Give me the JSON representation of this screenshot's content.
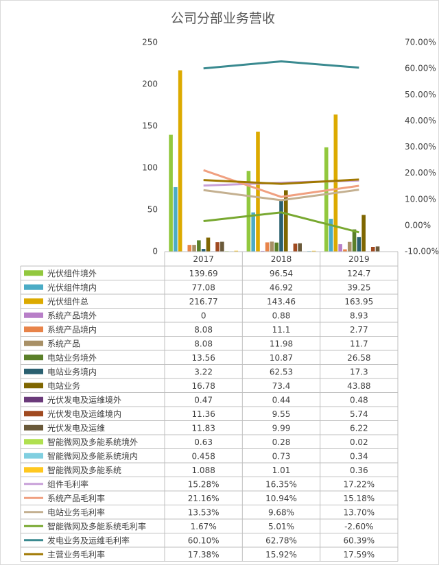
{
  "chart_data": {
    "type": "bar",
    "title": "公司分部业务营收",
    "categories": [
      "2017",
      "2018",
      "2019"
    ],
    "ylim": [
      0,
      250
    ],
    "yticks": [
      0,
      50,
      100,
      150,
      200,
      250
    ],
    "y2lim": [
      -10,
      70
    ],
    "y2ticks": [
      {
        "value": -10,
        "label": "-10.00%"
      },
      {
        "value": 0,
        "label": "0.00%"
      },
      {
        "value": 10,
        "label": "10.00%"
      },
      {
        "value": 20,
        "label": "20.00%"
      },
      {
        "value": 30,
        "label": "30.00%"
      },
      {
        "value": 40,
        "label": "40.00%"
      },
      {
        "value": 50,
        "label": "50.00%"
      },
      {
        "value": 60,
        "label": "60.00%"
      },
      {
        "value": 70,
        "label": "70.00%"
      }
    ],
    "series": [
      {
        "name": "光伏组件境外",
        "type": "bar",
        "color": "#92c83e",
        "values": [
          139.69,
          96.54,
          124.7
        ]
      },
      {
        "name": "光伏组件境内",
        "type": "bar",
        "color": "#4bacc6",
        "values": [
          77.08,
          46.92,
          39.25
        ]
      },
      {
        "name": "光伏组件总",
        "type": "bar",
        "color": "#dcaa00",
        "values": [
          216.77,
          143.46,
          163.95
        ]
      },
      {
        "name": "系统产品境外",
        "type": "bar",
        "color": "#b87fc8",
        "values": [
          0,
          0.88,
          8.93
        ]
      },
      {
        "name": "系统产品境内",
        "type": "bar",
        "color": "#e8844a",
        "values": [
          8.08,
          11.1,
          2.77
        ]
      },
      {
        "name": "系统产品",
        "type": "bar",
        "color": "#a89066",
        "values": [
          8.08,
          11.98,
          11.7
        ]
      },
      {
        "name": "电站业务境外",
        "type": "bar",
        "color": "#5a7f28",
        "values": [
          13.56,
          10.87,
          26.58
        ]
      },
      {
        "name": "电站业务境内",
        "type": "bar",
        "color": "#2a6070",
        "values": [
          3.22,
          62.53,
          17.3
        ]
      },
      {
        "name": "电站业务",
        "type": "bar",
        "color": "#7f6600",
        "values": [
          16.78,
          73.4,
          43.88
        ]
      },
      {
        "name": "光伏发电及运维境外",
        "type": "bar",
        "color": "#6a3a7a",
        "values": [
          0.47,
          0.44,
          0.48
        ]
      },
      {
        "name": "光伏发电及运维境内",
        "type": "bar",
        "color": "#a04a20",
        "values": [
          11.36,
          9.55,
          5.74
        ]
      },
      {
        "name": "光伏发电及运维",
        "type": "bar",
        "color": "#6a5a3a",
        "values": [
          11.83,
          9.99,
          6.22
        ]
      },
      {
        "name": "智能微网及多能系统境外",
        "type": "bar",
        "color": "#b0e050",
        "values": [
          0.63,
          0.28,
          0.02
        ]
      },
      {
        "name": "智能微网及多能系统境内",
        "type": "bar",
        "color": "#80cfe0",
        "values": [
          0.458,
          0.73,
          0.34
        ]
      },
      {
        "name": "智能微网及多能系统",
        "type": "bar",
        "color": "#ffc820",
        "values": [
          1.088,
          1.01,
          0.36
        ]
      },
      {
        "name": "组件毛利率",
        "type": "line",
        "axis": "y2",
        "color": "#c8a0d8",
        "values": [
          15.28,
          16.35,
          17.22
        ],
        "value_labels": [
          "15.28%",
          "16.35%",
          "17.22%"
        ]
      },
      {
        "name": "系统产品毛利率",
        "type": "line",
        "axis": "y2",
        "color": "#f0a080",
        "values": [
          21.16,
          10.94,
          15.18
        ],
        "value_labels": [
          "21.16%",
          "10.94%",
          "15.18%"
        ]
      },
      {
        "name": "电站业务毛利率",
        "type": "line",
        "axis": "y2",
        "color": "#c4b090",
        "values": [
          13.53,
          9.68,
          13.7
        ],
        "value_labels": [
          "13.53%",
          "9.68%",
          "13.70%"
        ]
      },
      {
        "name": "智能微网及多能系统毛利率",
        "type": "line",
        "axis": "y2",
        "color": "#78a830",
        "values": [
          1.67,
          5.01,
          -2.6
        ],
        "value_labels": [
          "1.67%",
          "5.01%",
          "-2.60%"
        ]
      },
      {
        "name": "发电业务及运维毛利率",
        "type": "line",
        "axis": "y2",
        "color": "#3a8a90",
        "values": [
          60.1,
          62.78,
          60.39
        ],
        "value_labels": [
          "60.10%",
          "62.78%",
          "60.39%"
        ]
      },
      {
        "name": "主营业务毛利率",
        "type": "line",
        "axis": "y2",
        "color": "#a07800",
        "values": [
          17.38,
          15.92,
          17.59
        ],
        "value_labels": [
          "17.38%",
          "15.92%",
          "17.59%"
        ]
      }
    ]
  }
}
